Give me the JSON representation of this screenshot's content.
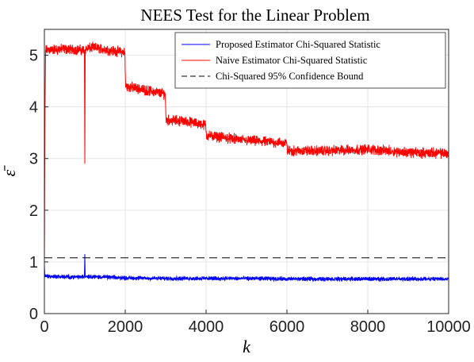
{
  "chart_data": {
    "type": "line",
    "title": "NEES Test for the Linear Problem",
    "xlabel": "k",
    "ylabel": "ε̄",
    "xlim": [
      0,
      10000
    ],
    "ylim": [
      0,
      5.5
    ],
    "xticks": [
      0,
      2000,
      4000,
      6000,
      8000,
      10000
    ],
    "yticks": [
      0,
      1,
      2,
      3,
      4,
      5
    ],
    "grid": true,
    "legend_position": "top-right",
    "series": [
      {
        "name": "Proposed Estimator Chi-Squared Statistic",
        "color": "#0000ff",
        "style": "solid",
        "x": [
          0,
          10,
          100,
          500,
          990,
          1000,
          1010,
          2000,
          3000,
          4000,
          5000,
          6000,
          7000,
          8000,
          9000,
          10000
        ],
        "y": [
          0.95,
          0.73,
          0.72,
          0.71,
          0.71,
          1.15,
          0.72,
          0.69,
          0.68,
          0.68,
          0.68,
          0.67,
          0.67,
          0.67,
          0.67,
          0.67
        ],
        "noise_amplitude": 0.05
      },
      {
        "name": "Naive Estimator Chi-Squared Statistic",
        "color": "#ff0000",
        "style": "solid",
        "x": [
          0,
          15,
          30,
          500,
          990,
          1000,
          1010,
          1200,
          1990,
          2010,
          2990,
          3010,
          3500,
          3990,
          4010,
          5000,
          5990,
          6010,
          7000,
          8000,
          9000,
          10000
        ],
        "y": [
          1.05,
          3.8,
          5.1,
          5.12,
          5.1,
          2.9,
          5.12,
          5.15,
          5.05,
          4.4,
          4.25,
          3.75,
          3.72,
          3.65,
          3.45,
          3.35,
          3.3,
          3.15,
          3.15,
          3.18,
          3.12,
          3.1
        ],
        "noise_amplitude": 0.12
      },
      {
        "name": "Chi-Squared 95% Confidence Bound",
        "color": "#000000",
        "style": "dashed",
        "x": [
          0,
          10000
        ],
        "y": [
          1.08,
          1.08
        ]
      }
    ]
  }
}
